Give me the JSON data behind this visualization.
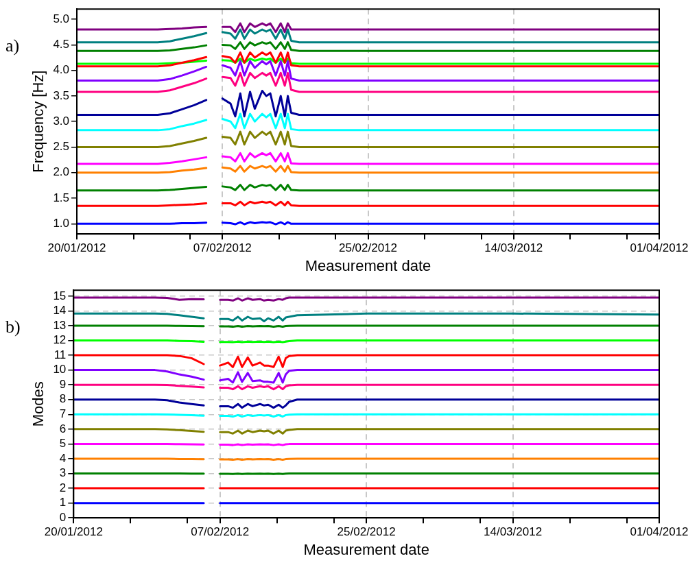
{
  "chart_data": [
    {
      "type": "line",
      "xlabel": "Measurement date",
      "ylabel": "Frequency [Hz]",
      "annotations": [
        "a)"
      ],
      "grid": "x",
      "legend": false,
      "marker": "none",
      "line_style": "solid",
      "xlim": [
        "2012-01-20",
        "2012-04-01"
      ],
      "ylim": [
        0.8,
        5.2
      ],
      "xticks": [
        {
          "value": "2012-01-20",
          "label": "20/01/2012"
        },
        {
          "value": "2012-01-27",
          "label": null
        },
        {
          "value": "2012-02-03",
          "label": null
        },
        {
          "value": "2012-02-07",
          "label": "07/02/2012"
        },
        {
          "value": "2012-02-14",
          "label": null
        },
        {
          "value": "2012-02-21",
          "label": null
        },
        {
          "value": "2012-02-25",
          "label": "25/02/2012"
        },
        {
          "value": "2012-03-03",
          "label": null
        },
        {
          "value": "2012-03-10",
          "label": null
        },
        {
          "value": "2012-03-14",
          "label": "14/03/2012"
        },
        {
          "value": "2012-03-21",
          "label": null
        },
        {
          "value": "2012-03-28",
          "label": null
        },
        {
          "value": "2012-04-01",
          "label": "01/04/2012"
        }
      ],
      "yticks": [
        {
          "value": 1,
          "label": "1.0"
        },
        {
          "value": 1.5,
          "label": "1.5"
        },
        {
          "value": 2,
          "label": "2.0"
        },
        {
          "value": 2.5,
          "label": "2.5"
        },
        {
          "value": 3,
          "label": "3.0"
        },
        {
          "value": 3.5,
          "label": "3.5"
        },
        {
          "value": 4,
          "label": "4.0"
        },
        {
          "value": 4.5,
          "label": "4.5"
        },
        {
          "value": 5,
          "label": "5.0"
        }
      ],
      "x": [
        "2012-01-20",
        "2012-01-25",
        "2012-01-30",
        "2012-01-31T12:00",
        "2012-02-02",
        "2012-02-03T12:00",
        "2012-02-05",
        "2012-02-06T12:00",
        "2012-02-07",
        "2012-02-08",
        "2012-02-08T14:00",
        "2012-02-09T05:00",
        "2012-02-09T17:00",
        "2012-02-10T10:00",
        "2012-02-11",
        "2012-02-11T22:00",
        "2012-02-12T10:00",
        "2012-02-12T22:00",
        "2012-02-13T14:00",
        "2012-02-14T05:00",
        "2012-02-14T17:00",
        "2012-02-15T02:00",
        "2012-02-15T12:00",
        "2012-02-16T12:00",
        "2012-02-25",
        "2012-03-14",
        "2012-04-01"
      ],
      "series": [
        {
          "color": "#0000ff",
          "values": [
            1.0,
            1.0,
            1.0,
            1.0,
            1.01,
            1.01,
            1.02,
            null,
            1.02,
            1.01,
            0.99,
            1.03,
            0.99,
            1.03,
            1.01,
            1.03,
            1.02,
            1.03,
            0.99,
            1.03,
            0.99,
            1.03,
            1.0,
            1.0,
            1.0,
            1.0,
            1.0
          ]
        },
        {
          "color": "#ff0000",
          "values": [
            1.35,
            1.35,
            1.35,
            1.36,
            1.37,
            1.38,
            1.4,
            null,
            1.4,
            1.4,
            1.36,
            1.43,
            1.36,
            1.43,
            1.4,
            1.43,
            1.41,
            1.43,
            1.36,
            1.43,
            1.36,
            1.43,
            1.36,
            1.35,
            1.35,
            1.35,
            1.35
          ]
        },
        {
          "color": "#008000",
          "values": [
            1.65,
            1.65,
            1.65,
            1.66,
            1.68,
            1.7,
            1.72,
            null,
            1.73,
            1.71,
            1.66,
            1.76,
            1.66,
            1.76,
            1.71,
            1.76,
            1.74,
            1.76,
            1.66,
            1.76,
            1.66,
            1.76,
            1.66,
            1.65,
            1.65,
            1.65,
            1.65
          ]
        },
        {
          "color": "#ff8000",
          "values": [
            2.0,
            2.0,
            2.0,
            2.01,
            2.04,
            2.06,
            2.09,
            null,
            2.1,
            2.08,
            2.02,
            2.13,
            2.02,
            2.13,
            2.08,
            2.13,
            2.1,
            2.13,
            2.02,
            2.13,
            2.02,
            2.13,
            2.01,
            2.0,
            2.0,
            2.0,
            2.0
          ]
        },
        {
          "color": "#ff00ff",
          "values": [
            2.17,
            2.17,
            2.17,
            2.19,
            2.22,
            2.26,
            2.3,
            null,
            2.32,
            2.3,
            2.22,
            2.38,
            2.22,
            2.38,
            2.3,
            2.38,
            2.34,
            2.38,
            2.22,
            2.38,
            2.22,
            2.38,
            2.18,
            2.17,
            2.17,
            2.17,
            2.17
          ]
        },
        {
          "color": "#808000",
          "values": [
            2.5,
            2.5,
            2.5,
            2.52,
            2.57,
            2.62,
            2.68,
            null,
            2.7,
            2.68,
            2.55,
            2.8,
            2.55,
            2.8,
            2.68,
            2.8,
            2.74,
            2.8,
            2.55,
            2.8,
            2.55,
            2.8,
            2.52,
            2.5,
            2.5,
            2.5,
            2.5
          ]
        },
        {
          "color": "#00ffff",
          "values": [
            2.83,
            2.83,
            2.83,
            2.85,
            2.91,
            2.96,
            3.03,
            null,
            3.05,
            3.0,
            2.87,
            3.15,
            2.87,
            3.15,
            3.0,
            3.15,
            3.08,
            3.15,
            2.87,
            3.15,
            2.87,
            3.15,
            2.85,
            2.83,
            2.83,
            2.83,
            2.83
          ]
        },
        {
          "color": "#000099",
          "values": [
            3.13,
            3.13,
            3.13,
            3.16,
            3.24,
            3.32,
            3.42,
            null,
            3.45,
            3.35,
            3.1,
            3.55,
            3.1,
            3.58,
            3.25,
            3.6,
            3.5,
            3.55,
            3.1,
            3.5,
            3.1,
            3.5,
            3.17,
            3.13,
            3.13,
            3.13,
            3.13
          ]
        },
        {
          "color": "#ff0080",
          "values": [
            3.58,
            3.58,
            3.58,
            3.61,
            3.68,
            3.75,
            3.84,
            null,
            3.87,
            3.85,
            3.7,
            3.95,
            3.7,
            3.95,
            3.85,
            3.95,
            3.9,
            3.95,
            3.7,
            3.95,
            3.7,
            3.95,
            3.62,
            3.58,
            3.58,
            3.58,
            3.58
          ]
        },
        {
          "color": "#8000ff",
          "values": [
            3.8,
            3.8,
            3.8,
            3.83,
            3.9,
            3.98,
            4.07,
            null,
            4.1,
            4.05,
            3.9,
            4.18,
            3.9,
            4.18,
            4.05,
            4.18,
            4.12,
            4.18,
            3.9,
            4.18,
            3.9,
            4.18,
            3.84,
            3.8,
            3.8,
            3.8,
            3.8
          ]
        },
        {
          "color": "#ff0000",
          "values": [
            4.08,
            4.08,
            4.08,
            4.1,
            4.15,
            4.2,
            4.26,
            null,
            4.28,
            4.25,
            4.15,
            4.35,
            4.15,
            4.35,
            4.25,
            4.35,
            4.3,
            4.35,
            4.15,
            4.35,
            4.15,
            4.35,
            4.1,
            4.08,
            4.08,
            4.08,
            4.08
          ]
        },
        {
          "color": "#00ff00",
          "values": [
            4.13,
            4.13,
            4.13,
            4.14,
            4.15,
            4.17,
            4.19,
            null,
            4.2,
            4.19,
            4.15,
            4.23,
            4.15,
            4.23,
            4.19,
            4.23,
            4.21,
            4.23,
            4.15,
            4.23,
            4.15,
            4.23,
            4.14,
            4.13,
            4.13,
            4.13,
            4.13
          ]
        },
        {
          "color": "#008000",
          "values": [
            4.38,
            4.38,
            4.38,
            4.39,
            4.42,
            4.45,
            4.49,
            null,
            4.5,
            4.49,
            4.42,
            4.55,
            4.42,
            4.55,
            4.49,
            4.55,
            4.52,
            4.55,
            4.42,
            4.55,
            4.42,
            4.55,
            4.4,
            4.38,
            4.38,
            4.38,
            4.38
          ]
        },
        {
          "color": "#008080",
          "values": [
            4.55,
            4.55,
            4.55,
            4.57,
            4.62,
            4.67,
            4.73,
            null,
            4.75,
            4.72,
            4.62,
            4.8,
            4.62,
            4.8,
            4.72,
            4.8,
            4.76,
            4.8,
            4.62,
            4.8,
            4.62,
            4.8,
            4.58,
            4.55,
            4.55,
            4.55,
            4.55
          ]
        },
        {
          "color": "#800080",
          "values": [
            4.8,
            4.8,
            4.8,
            4.81,
            4.82,
            4.84,
            4.85,
            null,
            4.85,
            4.85,
            4.75,
            4.92,
            4.75,
            4.92,
            4.85,
            4.92,
            4.88,
            4.92,
            4.75,
            4.92,
            4.75,
            4.92,
            4.8,
            4.8,
            4.8,
            4.8,
            4.8
          ]
        }
      ]
    },
    {
      "type": "line",
      "xlabel": "Measurement date",
      "ylabel": "Modes",
      "annotations": [
        "b)"
      ],
      "grid": true,
      "legend": false,
      "marker": "none",
      "line_style": "solid",
      "xlim": [
        "2012-01-20",
        "2012-04-01"
      ],
      "ylim": [
        0,
        15.4
      ],
      "xticks": [
        {
          "value": "2012-01-20",
          "label": "20/01/2012"
        },
        {
          "value": "2012-01-27",
          "label": null
        },
        {
          "value": "2012-02-03",
          "label": null
        },
        {
          "value": "2012-02-07",
          "label": "07/02/2012"
        },
        {
          "value": "2012-02-14",
          "label": null
        },
        {
          "value": "2012-02-21",
          "label": null
        },
        {
          "value": "2012-02-25",
          "label": "25/02/2012"
        },
        {
          "value": "2012-03-03",
          "label": null
        },
        {
          "value": "2012-03-10",
          "label": null
        },
        {
          "value": "2012-03-14",
          "label": "14/03/2012"
        },
        {
          "value": "2012-03-21",
          "label": null
        },
        {
          "value": "2012-03-28",
          "label": null
        },
        {
          "value": "2012-04-01",
          "label": "01/04/2012"
        }
      ],
      "yticks": [
        0,
        1,
        2,
        3,
        4,
        5,
        6,
        7,
        8,
        9,
        10,
        11,
        12,
        13,
        14,
        15
      ],
      "x": [
        "2012-01-20",
        "2012-01-25",
        "2012-01-30",
        "2012-01-31T12:00",
        "2012-02-02",
        "2012-02-03T12:00",
        "2012-02-05",
        "2012-02-06T12:00",
        "2012-02-07",
        "2012-02-08",
        "2012-02-08T14:00",
        "2012-02-09T05:00",
        "2012-02-09T17:00",
        "2012-02-10T10:00",
        "2012-02-11",
        "2012-02-11T22:00",
        "2012-02-12T10:00",
        "2012-02-12T22:00",
        "2012-02-13T14:00",
        "2012-02-14T05:00",
        "2012-02-14T17:00",
        "2012-02-15T02:00",
        "2012-02-15T12:00",
        "2012-02-16T12:00",
        "2012-02-25",
        "2012-03-14",
        "2012-04-01"
      ],
      "series": [
        {
          "color": "#0000ff",
          "values": [
            1,
            1,
            1,
            1,
            1,
            1,
            1,
            null,
            1,
            1,
            1,
            1,
            1,
            1,
            1,
            1,
            1,
            1,
            1,
            1,
            1,
            1,
            1,
            1,
            1,
            1,
            1
          ]
        },
        {
          "color": "#ff0000",
          "values": [
            2,
            2,
            2,
            2,
            2,
            2,
            2,
            null,
            2,
            2,
            2,
            2,
            2,
            2,
            2,
            2,
            2,
            2,
            2,
            2,
            2,
            2,
            2,
            2,
            2,
            2,
            2
          ]
        },
        {
          "color": "#008000",
          "values": [
            3,
            3,
            3,
            3,
            3,
            2.99,
            2.99,
            null,
            2.98,
            2.98,
            2.97,
            2.99,
            2.97,
            2.99,
            2.98,
            2.99,
            2.98,
            2.99,
            2.97,
            2.99,
            2.97,
            2.99,
            3,
            3,
            3,
            3,
            3
          ]
        },
        {
          "color": "#ff8000",
          "values": [
            4,
            4,
            4,
            4,
            3.98,
            3.97,
            3.96,
            null,
            3.95,
            3.95,
            3.93,
            3.97,
            3.93,
            3.97,
            3.95,
            3.97,
            3.96,
            3.97,
            3.93,
            3.97,
            3.93,
            3.97,
            3.99,
            4,
            4,
            4,
            4
          ]
        },
        {
          "color": "#ff00ff",
          "values": [
            5,
            5,
            5,
            5,
            4.98,
            4.97,
            4.96,
            null,
            4.95,
            4.95,
            4.92,
            4.97,
            4.92,
            4.97,
            4.95,
            4.97,
            4.96,
            4.97,
            4.92,
            4.97,
            4.92,
            4.97,
            4.99,
            5,
            5,
            5,
            5
          ]
        },
        {
          "color": "#808000",
          "values": [
            6,
            6,
            6,
            5.98,
            5.93,
            5.88,
            5.82,
            null,
            5.8,
            5.8,
            5.7,
            5.9,
            5.7,
            5.9,
            5.8,
            5.9,
            5.85,
            5.9,
            5.7,
            5.9,
            5.7,
            5.9,
            5.95,
            6,
            6,
            6,
            6
          ]
        },
        {
          "color": "#00ffff",
          "values": [
            7,
            7,
            7,
            6.99,
            6.97,
            6.94,
            6.91,
            null,
            6.9,
            6.9,
            6.85,
            6.95,
            6.85,
            6.95,
            6.9,
            6.95,
            6.92,
            6.95,
            6.85,
            6.95,
            6.85,
            6.95,
            6.98,
            7,
            7,
            7,
            7
          ]
        },
        {
          "color": "#000099",
          "values": [
            8,
            8,
            8,
            7.95,
            7.8,
            7.7,
            7.6,
            null,
            7.55,
            7.55,
            7.45,
            7.7,
            7.45,
            7.7,
            7.55,
            7.7,
            7.6,
            7.65,
            7.45,
            7.65,
            7.45,
            7.6,
            7.85,
            8,
            8,
            8,
            8
          ]
        },
        {
          "color": "#ff0080",
          "values": [
            9,
            9,
            9,
            8.98,
            8.93,
            8.88,
            8.82,
            null,
            8.8,
            8.8,
            8.7,
            8.9,
            8.7,
            8.9,
            8.8,
            8.9,
            8.85,
            8.9,
            8.7,
            8.9,
            8.7,
            8.9,
            8.96,
            9,
            9,
            9,
            9
          ]
        },
        {
          "color": "#8000ff",
          "values": [
            10,
            10,
            10,
            9.9,
            9.7,
            9.55,
            9.35,
            null,
            9.3,
            9.4,
            9.15,
            9.85,
            9.2,
            9.8,
            9.25,
            9.3,
            9.2,
            9.2,
            9.15,
            9.8,
            9.15,
            9.7,
            9.95,
            10,
            10,
            10,
            10
          ]
        },
        {
          "color": "#ff0000",
          "values": [
            11,
            11,
            11,
            11,
            10.95,
            10.8,
            10.4,
            null,
            10.3,
            10.5,
            10.2,
            10.9,
            10.2,
            10.85,
            10.3,
            10.5,
            10.3,
            10.3,
            10.2,
            10.9,
            10.2,
            10.8,
            10.95,
            11,
            11,
            11,
            11
          ]
        },
        {
          "color": "#00ff00",
          "values": [
            12,
            12,
            12,
            12,
            11.97,
            11.95,
            11.91,
            null,
            11.9,
            11.9,
            11.88,
            11.92,
            11.88,
            11.92,
            11.9,
            11.92,
            11.9,
            11.92,
            11.88,
            11.92,
            11.88,
            11.92,
            11.95,
            12,
            12,
            12,
            12
          ]
        },
        {
          "color": "#008000",
          "values": [
            13,
            13,
            13,
            13,
            12.98,
            12.97,
            12.96,
            null,
            12.95,
            12.95,
            12.93,
            12.97,
            12.93,
            12.97,
            12.95,
            12.97,
            12.96,
            12.97,
            12.93,
            12.97,
            12.93,
            12.97,
            12.99,
            13,
            13,
            13,
            13
          ]
        },
        {
          "color": "#008080",
          "values": [
            13.82,
            13.82,
            13.82,
            13.8,
            13.7,
            13.6,
            13.5,
            null,
            13.45,
            13.45,
            13.35,
            13.6,
            13.35,
            13.6,
            13.45,
            13.5,
            13.3,
            13.5,
            13.35,
            13.6,
            13.35,
            13.55,
            13.6,
            13.7,
            13.82,
            13.82,
            13.75
          ]
        },
        {
          "color": "#800080",
          "values": [
            14.9,
            14.9,
            14.9,
            14.88,
            14.75,
            14.8,
            14.78,
            null,
            14.75,
            14.75,
            14.7,
            14.85,
            14.7,
            14.85,
            14.75,
            14.8,
            14.7,
            14.75,
            14.7,
            14.8,
            14.75,
            14.85,
            14.9,
            14.9,
            14.9,
            14.9,
            14.9
          ]
        }
      ]
    }
  ]
}
